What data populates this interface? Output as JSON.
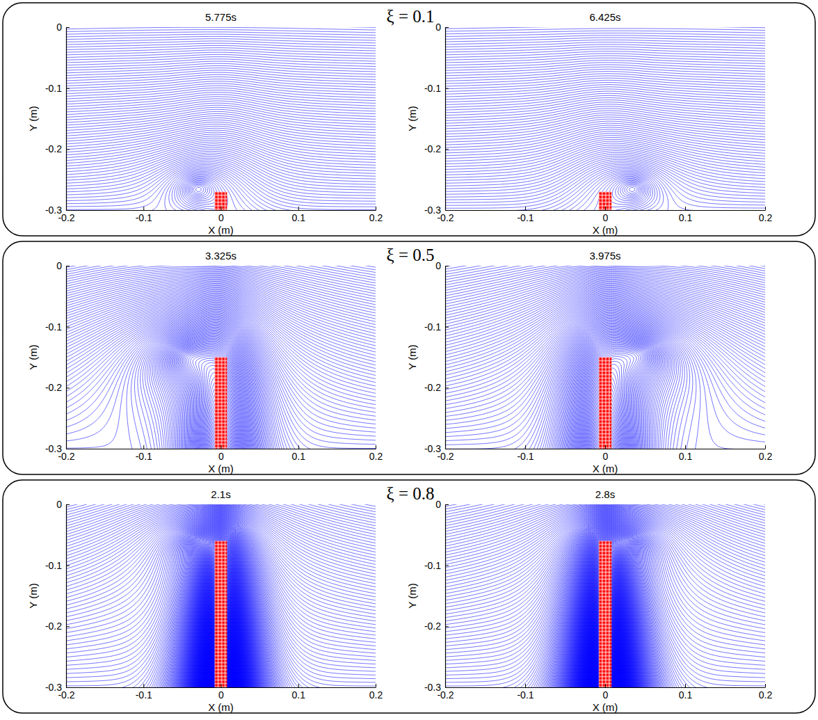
{
  "chart_data": [
    {
      "type": "streamline",
      "title": "5.775s",
      "annotation": "ξ = 0.1",
      "x_label": "X (m)",
      "y_label": "Y (m)",
      "xlim": [
        -0.2,
        0.2
      ],
      "ylim": [
        -0.3,
        0
      ],
      "xticks": [
        -0.2,
        -0.1,
        0,
        0.1,
        0.2
      ],
      "yticks": [
        -0.3,
        -0.2,
        -0.1,
        0
      ],
      "color": "#0000ff",
      "barrier_color": "#ff0000",
      "barrier_x": [
        -0.008,
        0.008
      ],
      "barrier_top": -0.27,
      "vortex": {
        "x": -0.03,
        "y": -0.265,
        "radius": 0.045
      }
    },
    {
      "type": "streamline",
      "title": "6.425s",
      "x_label": "X (m)",
      "y_label": "Y (m)",
      "xlim": [
        -0.2,
        0.2
      ],
      "ylim": [
        -0.3,
        0
      ],
      "xticks": [
        -0.2,
        -0.1,
        0,
        0.1,
        0.2
      ],
      "yticks": [
        -0.3,
        -0.2,
        -0.1,
        0
      ],
      "color": "#0000ff",
      "barrier_color": "#ff0000",
      "barrier_x": [
        -0.008,
        0.008
      ],
      "barrier_top": -0.27,
      "vortex": {
        "x": 0.035,
        "y": -0.265,
        "radius": 0.045
      }
    },
    {
      "type": "streamline",
      "title": "3.325s",
      "annotation": "ξ = 0.5",
      "x_label": "X (m)",
      "y_label": "Y (m)",
      "xlim": [
        -0.2,
        0.2
      ],
      "ylim": [
        -0.3,
        0
      ],
      "xticks": [
        -0.2,
        -0.1,
        0,
        0.1,
        0.2
      ],
      "yticks": [
        -0.3,
        -0.2,
        -0.1,
        0
      ],
      "color": "#0000ff",
      "barrier_color": "#ff0000",
      "barrier_x": [
        -0.008,
        0.008
      ],
      "barrier_top": -0.15,
      "vortex": {
        "x": -0.045,
        "y": -0.15,
        "radius": 0.09
      }
    },
    {
      "type": "streamline",
      "title": "3.975s",
      "x_label": "X (m)",
      "y_label": "Y (m)",
      "xlim": [
        -0.2,
        0.2
      ],
      "ylim": [
        -0.3,
        0
      ],
      "xticks": [
        -0.2,
        -0.1,
        0,
        0.1,
        0.2
      ],
      "yticks": [
        -0.3,
        -0.2,
        -0.1,
        0
      ],
      "color": "#0000ff",
      "barrier_color": "#ff0000",
      "barrier_x": [
        -0.008,
        0.008
      ],
      "barrier_top": -0.15,
      "vortex": {
        "x": 0.045,
        "y": -0.145,
        "radius": 0.09
      }
    },
    {
      "type": "streamline",
      "title": "2.1s",
      "annotation": "ξ = 0.8",
      "x_label": "X (m)",
      "y_label": "Y (m)",
      "xlim": [
        -0.2,
        0.2
      ],
      "ylim": [
        -0.3,
        0
      ],
      "xticks": [
        -0.2,
        -0.1,
        0,
        0.1,
        0.2
      ],
      "yticks": [
        -0.3,
        -0.2,
        -0.1,
        0
      ],
      "color": "#0000ff",
      "barrier_color": "#ff0000",
      "barrier_x": [
        -0.008,
        0.008
      ],
      "barrier_top": -0.06,
      "vortex": {
        "x": -0.03,
        "y": -0.06,
        "radius": 0.06
      }
    },
    {
      "type": "streamline",
      "title": "2.8s",
      "x_label": "X (m)",
      "y_label": "Y (m)",
      "xlim": [
        -0.2,
        0.2
      ],
      "ylim": [
        -0.3,
        0
      ],
      "xticks": [
        -0.2,
        -0.1,
        0,
        0.1,
        0.2
      ],
      "yticks": [
        -0.3,
        -0.2,
        -0.1,
        0
      ],
      "color": "#0000ff",
      "barrier_color": "#ff0000",
      "barrier_x": [
        -0.008,
        0.008
      ],
      "barrier_top": -0.06,
      "vortex": {
        "x": 0.03,
        "y": -0.06,
        "radius": 0.06
      }
    }
  ]
}
